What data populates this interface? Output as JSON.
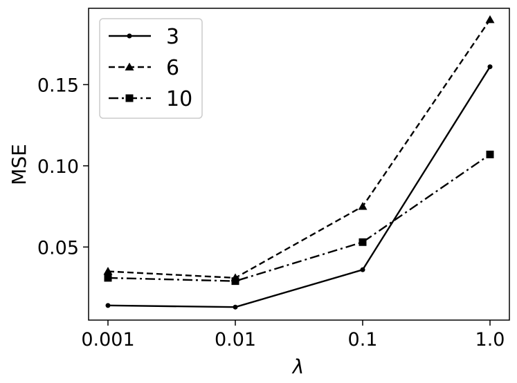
{
  "chart_data": {
    "type": "line",
    "x_scale": "categorical",
    "categories": [
      "0.001",
      "0.01",
      "0.1",
      "1.0"
    ],
    "xlabel": "λ",
    "ylabel": "MSE",
    "ylim": [
      0.005,
      0.197
    ],
    "yticks": [
      "0.05",
      "0.10",
      "0.15"
    ],
    "grid": false,
    "legend_position": "top-left",
    "series": [
      {
        "name": "3",
        "values": [
          0.014,
          0.013,
          0.036,
          0.161
        ],
        "marker": "circle",
        "line": "solid"
      },
      {
        "name": "6",
        "values": [
          0.035,
          0.031,
          0.075,
          0.19
        ],
        "marker": "triangle",
        "line": "dashed"
      },
      {
        "name": "10",
        "values": [
          0.031,
          0.029,
          0.053,
          0.107
        ],
        "marker": "square",
        "line": "dashdot"
      }
    ],
    "color": "#000000"
  }
}
